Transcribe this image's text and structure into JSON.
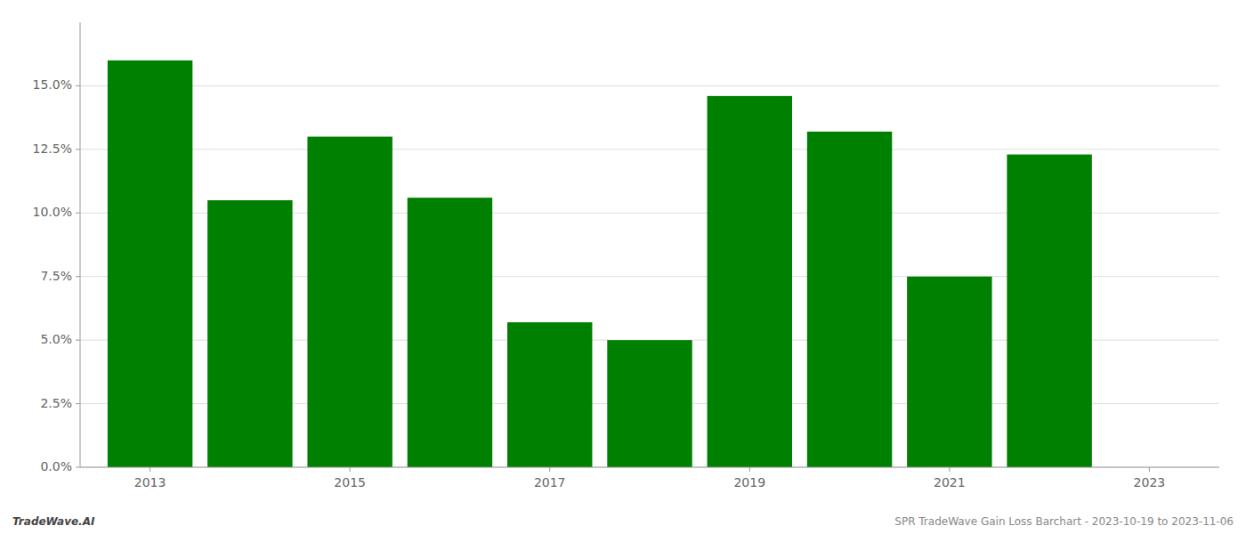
{
  "chart_data": {
    "type": "bar",
    "x": [
      2013,
      2014,
      2015,
      2016,
      2017,
      2018,
      2019,
      2020,
      2021,
      2022
    ],
    "values": [
      0.16,
      0.105,
      0.13,
      0.106,
      0.057,
      0.05,
      0.146,
      0.132,
      0.075,
      0.123
    ],
    "color": "#008000",
    "xlim": [
      2012.3,
      2023.7
    ],
    "xticks": [
      2013,
      2015,
      2017,
      2019,
      2021,
      2023
    ],
    "ylim": [
      0.0,
      0.175
    ],
    "yticks": [
      {
        "value": 0.0,
        "label": "0.0%"
      },
      {
        "value": 0.025,
        "label": "2.5%"
      },
      {
        "value": 0.05,
        "label": "5.0%"
      },
      {
        "value": 0.075,
        "label": "7.5%"
      },
      {
        "value": 0.1,
        "label": "10.0%"
      },
      {
        "value": 0.125,
        "label": "12.5%"
      },
      {
        "value": 0.15,
        "label": "15.0%"
      }
    ],
    "grid": true,
    "annotations": [
      "TradeWave.AI",
      "SPR TradeWave Gain Loss Barchart - 2023-10-19 to 2023-11-06"
    ]
  }
}
